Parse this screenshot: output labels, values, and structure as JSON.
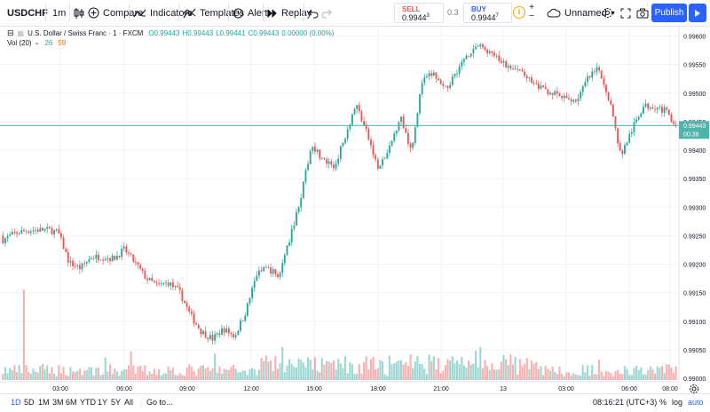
{
  "toolbar": {
    "symbol": "USDCHF",
    "interval": "1m",
    "compare": "Compare",
    "indicators": "Indicators",
    "templates": "Templates",
    "alert": "Alert",
    "replay": "Replay",
    "sell_label": "SELL",
    "sell_price": "0.9944",
    "sell_sup": "3",
    "spread": "0.3",
    "buy_label": "BUY",
    "buy_price": "0.9944",
    "buy_sup": "7",
    "layout_name": "Unnamed",
    "publish": "Publish"
  },
  "legend": {
    "title": "U.S. Dollar / Swiss Franc · 1 · FXCM",
    "open": "O0.99443",
    "high": "H0.99443",
    "low": "L0.99441",
    "close": "C0.99443",
    "change": "0.00000 (0.00%)",
    "volume_label": "Vol (20)",
    "volume_value": "26",
    "volume_ma": "59"
  },
  "price_axis": {
    "ticks": [
      "0.99600",
      "0.99550",
      "0.99500",
      "0.99450",
      "0.99400",
      "0.99350",
      "0.99300",
      "0.99250",
      "0.99200",
      "0.99150",
      "0.99100",
      "0.99050",
      "0.99000"
    ],
    "current_price": "0.99443",
    "countdown": "00:38"
  },
  "time_axis": {
    "ticks": [
      "03:00",
      "06:00",
      "09:00",
      "12:00",
      "15:00",
      "18:00",
      "21:00",
      "13",
      "03:00",
      "06:00",
      "08:00"
    ]
  },
  "bottom": {
    "ranges": [
      "1D",
      "5D",
      "1M",
      "3M",
      "6M",
      "YTD",
      "1Y",
      "5Y",
      "All"
    ],
    "active_range": "1D",
    "goto": "Go to...",
    "clock": "08:16:21 (UTC+3)",
    "percent": "%",
    "log": "log",
    "auto": "auto"
  },
  "colors": {
    "up": "#26a69a",
    "down": "#ef5350",
    "accent": "#2962ff",
    "price_line": "#4db6ac"
  },
  "chart_data": {
    "type": "candlestick",
    "symbol": "USDCHF",
    "timeframe": "1m",
    "ylim": [
      0.99,
      0.9962
    ],
    "price_path": [
      [
        0.9925,
        0.99235
      ],
      [
        0.99262,
        0.99245
      ],
      [
        0.99265,
        0.99252
      ],
      [
        0.99258,
        0.99262
      ],
      [
        0.99272,
        0.99248
      ],
      [
        0.99252,
        0.9926
      ],
      [
        0.9922,
        0.99185
      ],
      [
        0.99196,
        0.9919
      ],
      [
        0.99215,
        0.9921
      ],
      [
        0.99208,
        0.99218
      ],
      [
        0.99214,
        0.99205
      ],
      [
        0.9923,
        0.99222
      ],
      [
        0.99208,
        0.99195
      ],
      [
        0.99192,
        0.99158
      ],
      [
        0.99162,
        0.99162
      ],
      [
        0.9917,
        0.99165
      ],
      [
        0.99158,
        0.99145
      ],
      [
        0.99125,
        0.99095
      ],
      [
        0.99088,
        0.99075
      ],
      [
        0.99068,
        0.9907
      ],
      [
        0.99108,
        0.99065
      ],
      [
        0.99075,
        0.99072
      ],
      [
        0.99115,
        0.99118
      ],
      [
        0.99155,
        0.9921
      ],
      [
        0.99208,
        0.99178
      ],
      [
        0.99165,
        0.99192
      ],
      [
        0.99218,
        0.99272
      ],
      [
        0.99302,
        0.99335
      ],
      [
        0.99398,
        0.99425
      ],
      [
        0.99388,
        0.99375
      ],
      [
        0.99292,
        0.99445
      ],
      [
        0.99378,
        0.9947
      ],
      [
        0.99468,
        0.99495
      ],
      [
        0.99412,
        0.99445
      ],
      [
        0.9939,
        0.99342
      ],
      [
        0.99375,
        0.99425
      ],
      [
        0.99458,
        0.99462
      ],
      [
        0.99405,
        0.99395
      ],
      [
        0.99472,
        0.99568
      ],
      [
        0.99545,
        0.99525
      ],
      [
        0.99498,
        0.99508
      ],
      [
        0.99525,
        0.99545
      ],
      [
        0.99552,
        0.99578
      ],
      [
        0.99592,
        0.99575
      ],
      [
        0.99578,
        0.99568
      ],
      [
        0.99568,
        0.99545
      ],
      [
        0.99548,
        0.99535
      ],
      [
        0.99518,
        0.99558
      ],
      [
        0.99508,
        0.99522
      ],
      [
        0.99508,
        0.99504
      ],
      [
        0.99505,
        0.99492
      ],
      [
        0.99488,
        0.9949
      ],
      [
        0.99478,
        0.99498
      ],
      [
        0.99518,
        0.99532
      ],
      [
        0.9954,
        0.99545
      ],
      [
        0.9951,
        0.99462
      ],
      [
        0.99408,
        0.99372
      ],
      [
        0.99422,
        0.99448
      ],
      [
        0.99462,
        0.9949
      ],
      [
        0.99482,
        0.99474
      ],
      [
        0.99475,
        0.99462
      ],
      [
        0.9945,
        0.99443
      ]
    ]
  }
}
